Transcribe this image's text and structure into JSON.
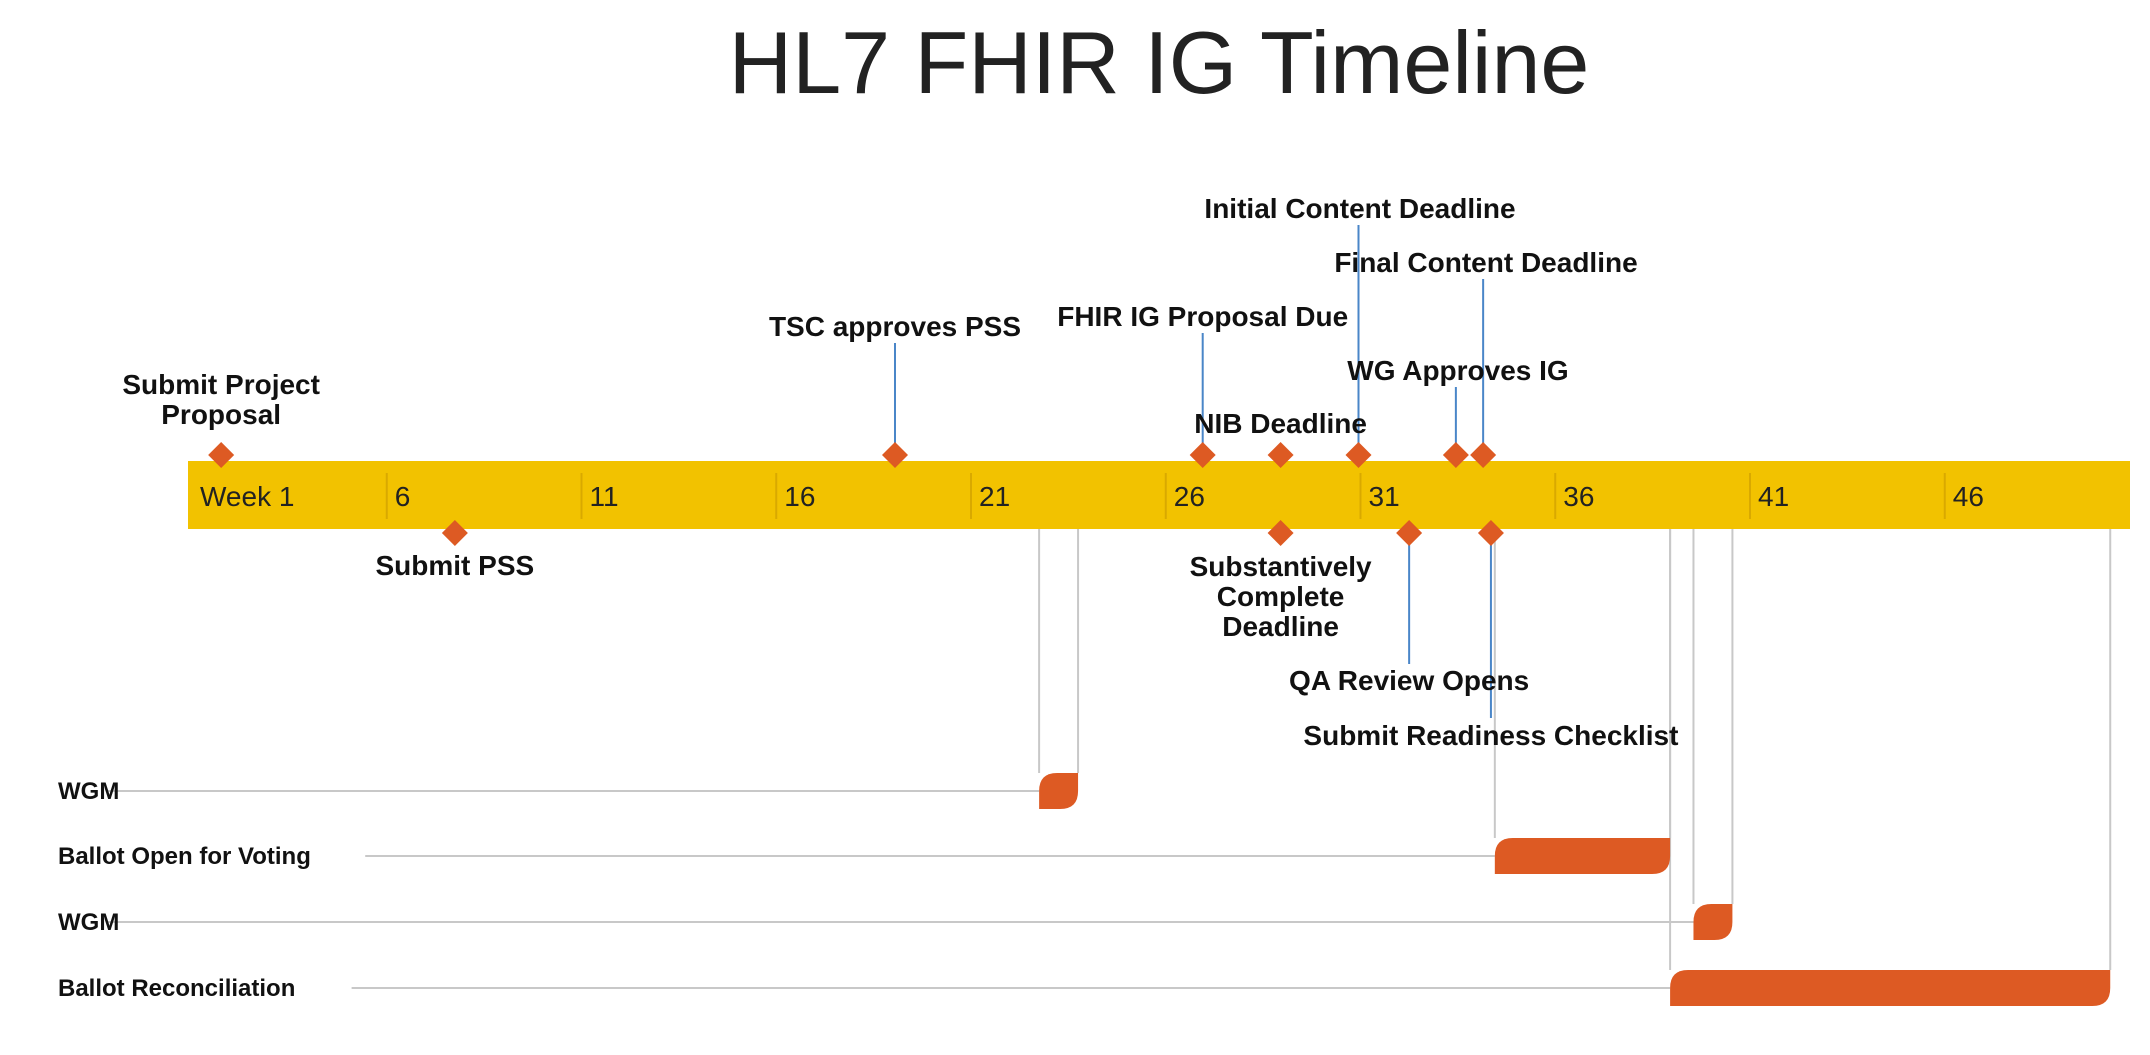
{
  "title": "HL7 FHIR IG Timeline",
  "colors": {
    "band": "#F2C200",
    "band_tick": "#D9A900",
    "marker": "#DD5A23",
    "leader": "#4A86C8",
    "task_line": "#C8C8C8"
  },
  "axis": {
    "unit": "week",
    "tick_labels": [
      "Week 1",
      "6",
      "11",
      "16",
      "21",
      "26",
      "31",
      "36",
      "41",
      "46"
    ]
  },
  "milestones": [
    {
      "label": "Submit Project Proposal",
      "week": 1.8,
      "side": "above"
    },
    {
      "label": "Submit PSS",
      "week": 7.8,
      "side": "below"
    },
    {
      "label": "TSC approves PSS",
      "week": 19.1,
      "side": "above"
    },
    {
      "label": "FHIR IG Proposal Due",
      "week": 27.0,
      "side": "above"
    },
    {
      "label": "NIB Deadline",
      "week": 29.0,
      "side": "above"
    },
    {
      "label": "Substantively Complete Deadline",
      "week": 29.0,
      "side": "below"
    },
    {
      "label": "Initial Content Deadline",
      "week": 31.0,
      "side": "above"
    },
    {
      "label": "QA Review Opens",
      "week": 32.3,
      "side": "below"
    },
    {
      "label": "WG Approves IG",
      "week": 33.5,
      "side": "above"
    },
    {
      "label": "Final Content Deadline",
      "week": 34.2,
      "side": "above"
    },
    {
      "label": "Submit Readiness Checklist",
      "week": 34.4,
      "side": "below"
    }
  ],
  "tasks": [
    {
      "label": "WGM",
      "start_week": 22.8,
      "end_week": 23.8
    },
    {
      "label": "Ballot Open for Voting",
      "start_week": 34.5,
      "end_week": 39.0
    },
    {
      "label": "WGM",
      "start_week": 39.6,
      "end_week": 40.6
    },
    {
      "label": "Ballot Reconciliation",
      "start_week": 39.0,
      "end_week": 50.3
    }
  ]
}
